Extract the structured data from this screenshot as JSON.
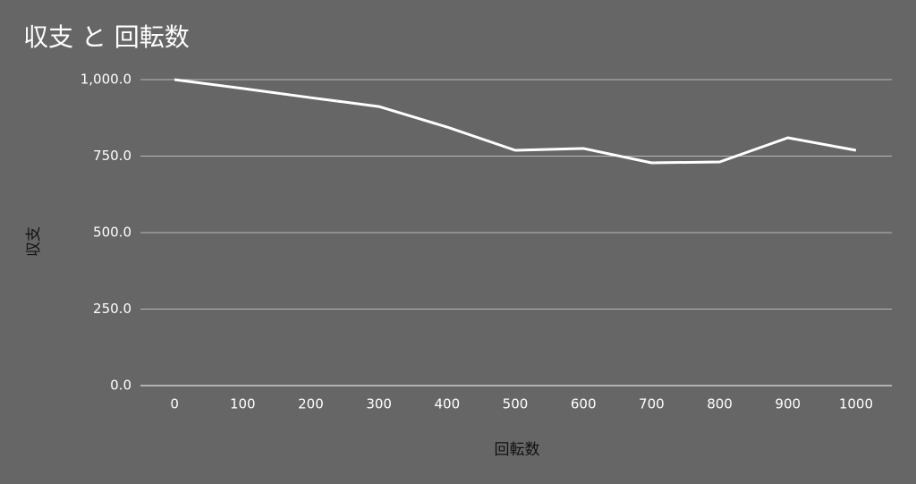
{
  "chart_data": {
    "type": "line",
    "title": "収支 と 回転数",
    "x_label": "回転数",
    "y_label": "収支",
    "categories": [
      "0",
      "100",
      "200",
      "300",
      "400",
      "500",
      "600",
      "700",
      "800",
      "900",
      "1000"
    ],
    "series": [
      {
        "name": "収支",
        "color": "#ffffff",
        "values": [
          1000,
          971,
          941,
          912,
          845,
          769,
          775,
          728,
          731,
          810,
          769
        ]
      }
    ],
    "ylim": [
      0,
      1000
    ],
    "yticks": [
      {
        "value": 0,
        "label": "0.0"
      },
      {
        "value": 250,
        "label": "250.0"
      },
      {
        "value": 500,
        "label": "500.0"
      },
      {
        "value": 750,
        "label": "750.0"
      },
      {
        "value": 1000,
        "label": "1,000.0"
      }
    ],
    "grid": true
  }
}
